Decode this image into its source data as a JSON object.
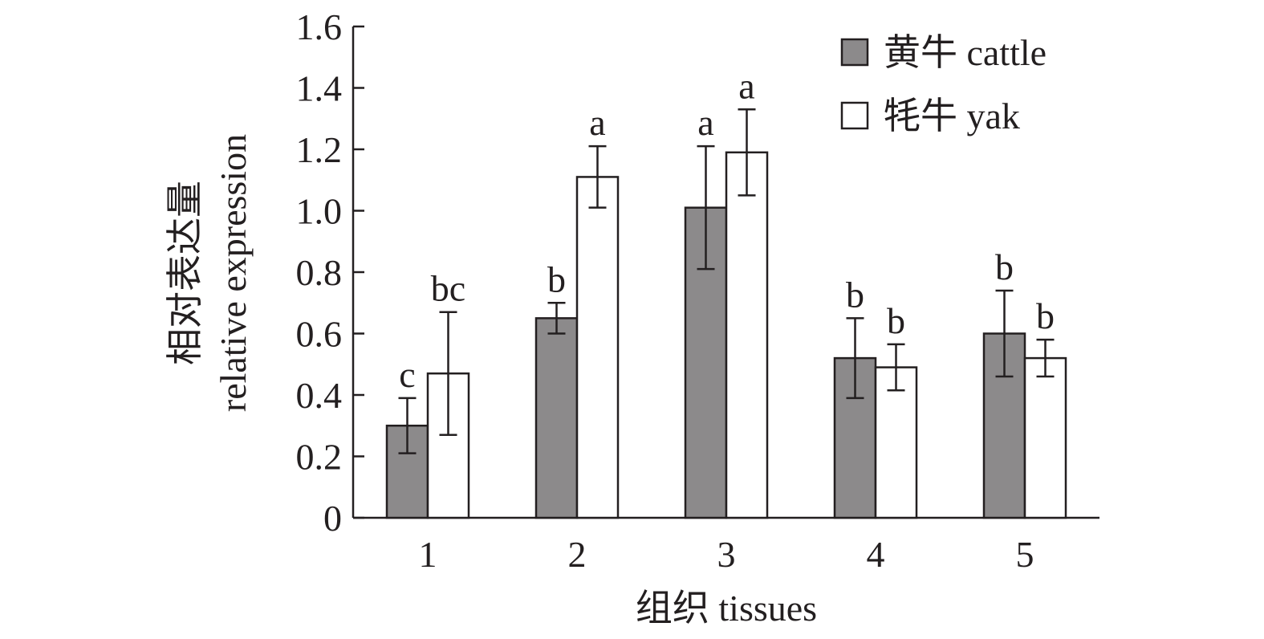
{
  "chart_data": {
    "type": "bar",
    "title": "",
    "xlabel": "组织 tissues",
    "ylabel_cn": "相对表达量",
    "ylabel_en": "relative expression",
    "ylim": [
      0,
      1.6
    ],
    "yticks": [
      "0",
      "0.2",
      "0.4",
      "0.6",
      "0.8",
      "1.0",
      "1.2",
      "1.4",
      "1.6"
    ],
    "categories": [
      "1",
      "2",
      "3",
      "4",
      "5"
    ],
    "legend_position": "top-right",
    "series": [
      {
        "name": "黄牛 cattle",
        "color": "#8c8a8b",
        "values": [
          0.3,
          0.65,
          1.01,
          0.52,
          0.6
        ],
        "errors": [
          0.09,
          0.05,
          0.2,
          0.13,
          0.14
        ],
        "letters": [
          "c",
          "b",
          "a",
          "b",
          "b"
        ]
      },
      {
        "name": "牦牛 yak",
        "color": "#ffffff",
        "values": [
          0.47,
          1.11,
          1.19,
          0.49,
          0.52
        ],
        "errors": [
          0.2,
          0.1,
          0.14,
          0.075,
          0.06
        ],
        "letters": [
          "bc",
          "a",
          "a",
          "b",
          "b"
        ]
      }
    ]
  }
}
